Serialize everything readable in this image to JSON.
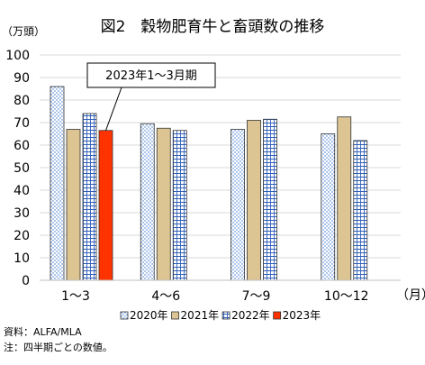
{
  "chart_data": {
    "type": "bar",
    "title": "図2　穀物肥育牛と畜頭数の推移",
    "ylabel": "（万頭）",
    "xunit": "（月）",
    "ylim": [
      0,
      100
    ],
    "ytick_step": 10,
    "grid": true,
    "legend_position": "bottom",
    "categories": [
      "1～3",
      "4～6",
      "7～9",
      "10～12"
    ],
    "series": [
      {
        "name": "2020年",
        "values": [
          86,
          69.5,
          67,
          65
        ],
        "fill": "#ffffff",
        "pattern": "dots-blue"
      },
      {
        "name": "2021年",
        "values": [
          67,
          67.5,
          71,
          72.5
        ],
        "fill": "#dcc592",
        "pattern": "solid"
      },
      {
        "name": "2022年",
        "values": [
          74,
          66.5,
          71.5,
          62
        ],
        "fill": "#ffffff",
        "pattern": "grid-blue"
      },
      {
        "name": "2023年",
        "values": [
          66.5,
          null,
          null,
          null
        ],
        "fill": "#ff3300",
        "pattern": "solid"
      }
    ],
    "annotation": {
      "text": "2023年1～3月期",
      "series_index": 3,
      "category_index": 0
    },
    "source": "資料：ALFA/MLA",
    "note": "注：四半期ごとの数値。"
  }
}
